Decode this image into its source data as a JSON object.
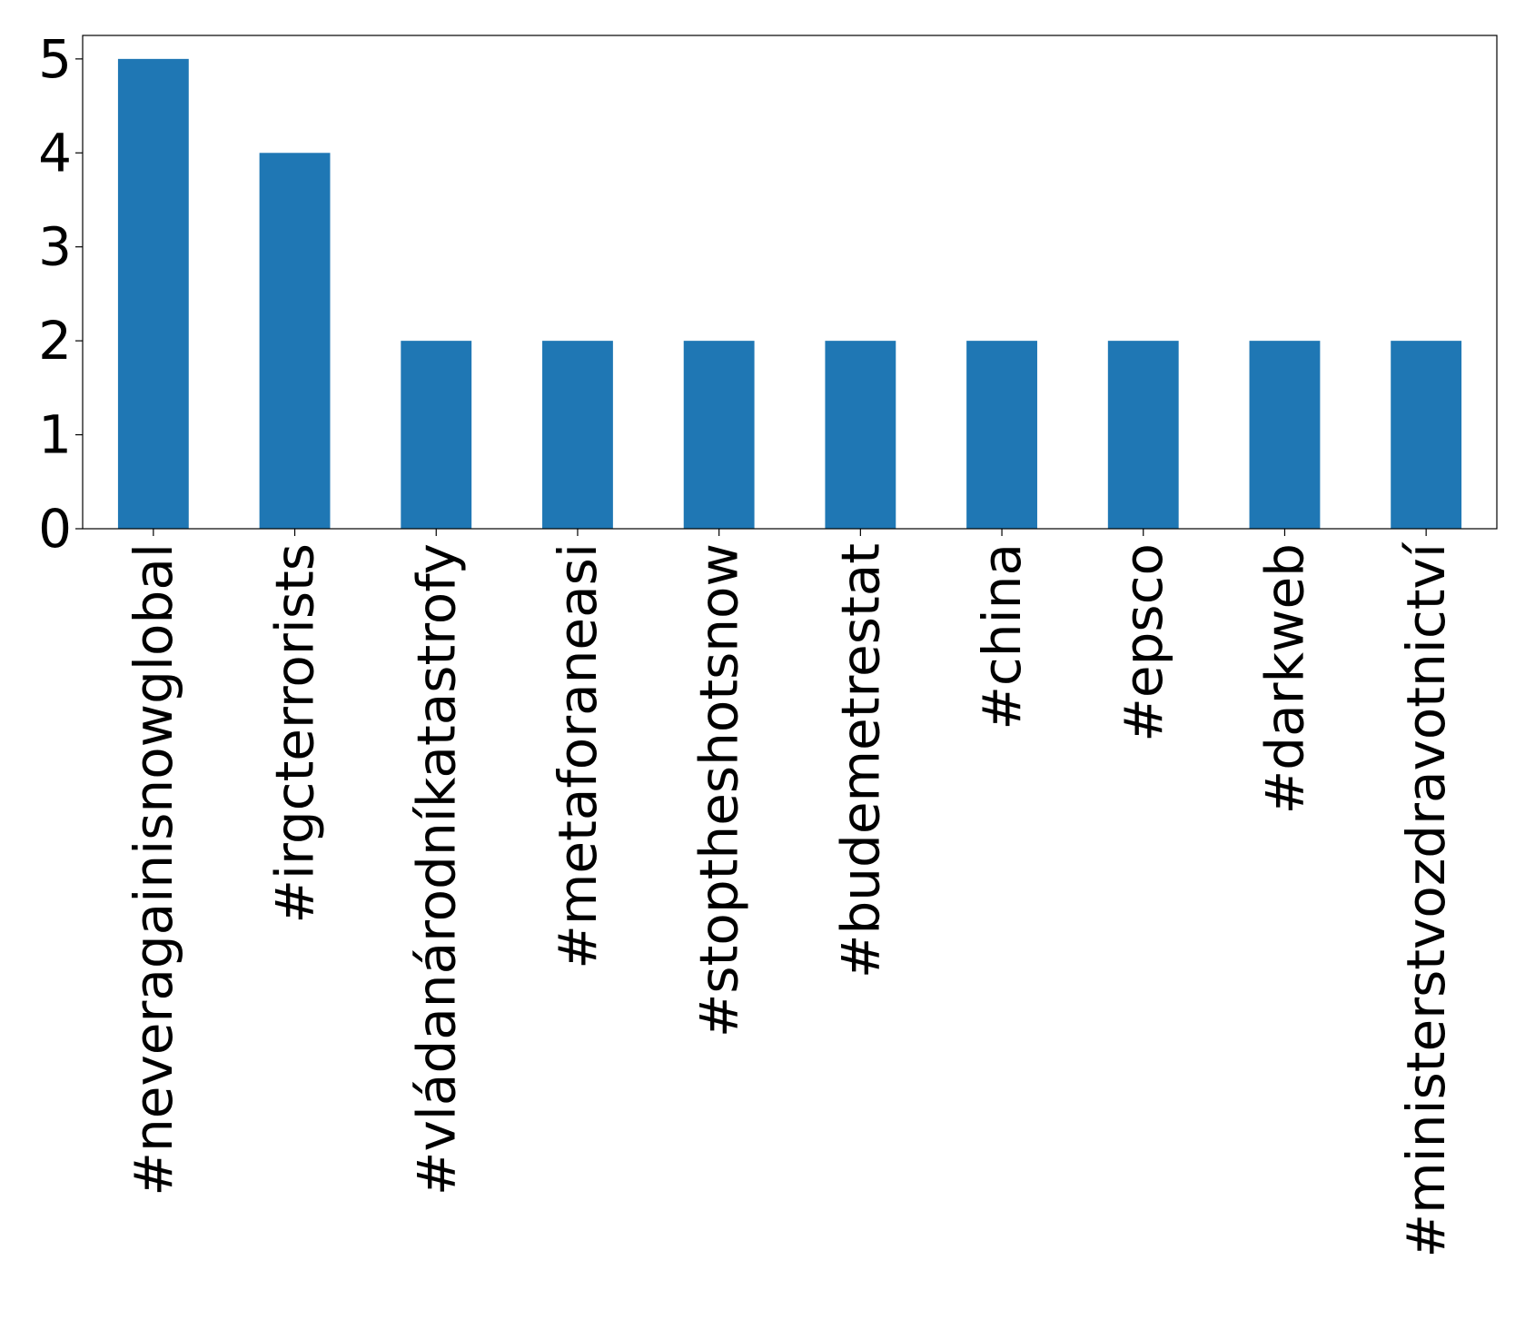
{
  "chart_data": {
    "type": "bar",
    "title": "",
    "xlabel": "",
    "ylabel": "",
    "categories": [
      "#neveragainisnowglobal",
      "#irgcterrorists",
      "#vládanárodníkatastrofy",
      "#metaforaneasi",
      "#stoptheshotsnow",
      "#budemetrestat",
      "#china",
      "#epsco",
      "#darkweb",
      "#ministerstvozdravotnictví"
    ],
    "values": [
      5,
      4,
      2,
      2,
      2,
      2,
      2,
      2,
      2,
      2
    ],
    "ylim": [
      0,
      5.25
    ],
    "yticks": [
      "0",
      "1",
      "2",
      "3",
      "4",
      "5"
    ],
    "bar_color": "#1f77b4",
    "grid": false,
    "legend": "none"
  }
}
